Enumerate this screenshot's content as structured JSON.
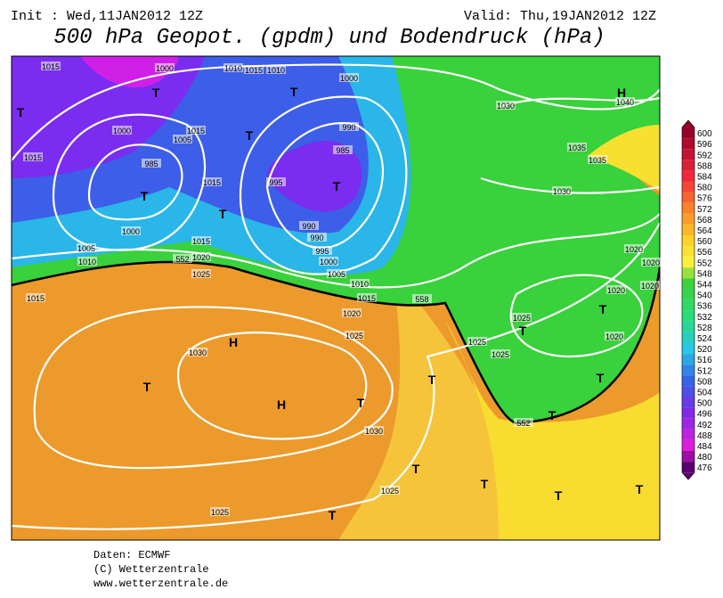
{
  "header": {
    "init": "Init : Wed,11JAN2012 12Z",
    "valid": "Valid: Thu,19JAN2012 12Z",
    "title": "500 hPa Geopot. (gpdm) und Bodendruck (hPa)"
  },
  "colorbar": {
    "ticks": [
      600,
      596,
      592,
      588,
      584,
      580,
      576,
      572,
      568,
      564,
      560,
      556,
      552,
      548,
      544,
      540,
      536,
      532,
      528,
      524,
      520,
      516,
      512,
      508,
      504,
      500,
      496,
      492,
      488,
      484,
      480,
      476
    ]
  },
  "map_labels": [
    "1015",
    "1000",
    "1010",
    "1015",
    "1010",
    "1000",
    "1030",
    "1040",
    "T",
    "T",
    "T",
    "H",
    "1000",
    "1005",
    "1015",
    "T",
    "990",
    "985",
    "1035",
    "1035",
    "1015",
    "985",
    "T",
    "1015",
    "995",
    "T",
    "1030",
    "T",
    "1000",
    "990",
    "990",
    "995",
    "1015",
    "1005",
    "1020",
    "1010",
    "1000",
    "1025",
    "1005",
    "1020",
    "1020",
    "1010",
    "1015",
    "1015",
    "552",
    "558",
    "1020",
    "1025",
    "T",
    "1020",
    "1020",
    "T",
    "1025",
    "1020",
    "H",
    "1025",
    "1025",
    "1030",
    "T",
    "T",
    "T",
    "H",
    "T",
    "T",
    "552",
    "1030",
    "T",
    "T",
    "1025",
    "T",
    "T",
    "1025",
    "T"
  ],
  "footer": [
    "Daten: ECMWF",
    "(C) Wetterzentrale",
    "www.wetterzentrale.de"
  ]
}
